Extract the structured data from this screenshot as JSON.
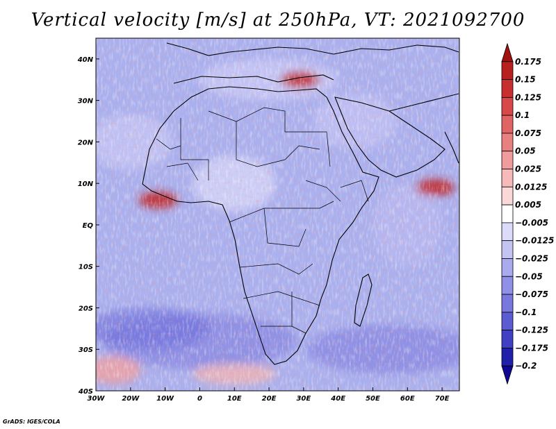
{
  "title": "Vertical velocity [m/s] at 250hPa, VT: 2021092700",
  "credit": "GrADS: IGES/COLA",
  "chart_data": {
    "type": "heatmap",
    "variable": "Vertical velocity",
    "units": "m/s",
    "level": "250hPa",
    "valid_time": "2021092700",
    "lon_range": [
      -30,
      75
    ],
    "lat_range": [
      -40,
      45
    ],
    "lon_ticks": [
      {
        "value": -30,
        "label": "30W"
      },
      {
        "value": -20,
        "label": "20W"
      },
      {
        "value": -10,
        "label": "10W"
      },
      {
        "value": 0,
        "label": "0"
      },
      {
        "value": 10,
        "label": "10E"
      },
      {
        "value": 20,
        "label": "20E"
      },
      {
        "value": 30,
        "label": "30E"
      },
      {
        "value": 40,
        "label": "40E"
      },
      {
        "value": 50,
        "label": "50E"
      },
      {
        "value": 60,
        "label": "60E"
      },
      {
        "value": 70,
        "label": "70E"
      }
    ],
    "lat_ticks": [
      {
        "value": 40,
        "label": "40N"
      },
      {
        "value": 30,
        "label": "30N"
      },
      {
        "value": 20,
        "label": "20N"
      },
      {
        "value": 10,
        "label": "10N"
      },
      {
        "value": 0,
        "label": "EQ"
      },
      {
        "value": -10,
        "label": "10S"
      },
      {
        "value": -20,
        "label": "20S"
      },
      {
        "value": -30,
        "label": "30S"
      },
      {
        "value": -40,
        "label": "40S"
      }
    ],
    "colorbar": {
      "levels": [
        "0.175",
        "0.15",
        "0.125",
        "0.1",
        "0.075",
        "0.05",
        "0.025",
        "0.0125",
        "0.005",
        "-0.005",
        "-0.0125",
        "-0.025",
        "-0.05",
        "-0.075",
        "-0.1",
        "-0.125",
        "-0.175",
        "-0.2"
      ],
      "colors": [
        "#a01010",
        "#b82020",
        "#c83030",
        "#d84848",
        "#e06464",
        "#e88080",
        "#f09c9c",
        "#f6baba",
        "#fbd8d8",
        "#ffffff",
        "#dcdcfa",
        "#c4c4f4",
        "#aaaaee",
        "#9090e6",
        "#7878de",
        "#5c5cd2",
        "#4040c4",
        "#2020aa",
        "#100890"
      ]
    },
    "features": [
      {
        "name": "Gulf of Guinea ascent",
        "lon": -12,
        "lat": 6,
        "sign": "up"
      },
      {
        "name": "Arabian Sea ascent",
        "lon": 68,
        "lat": 9,
        "sign": "up"
      },
      {
        "name": "Egypt ascent",
        "lon": 29,
        "lat": 35,
        "sign": "up"
      },
      {
        "name": "Southern ocean subsidence",
        "lon": -15,
        "lat": -25,
        "sign": "down"
      }
    ]
  },
  "colors": {
    "map_bg": "#aab0ee",
    "border": "#000000",
    "frame": "#000000"
  }
}
